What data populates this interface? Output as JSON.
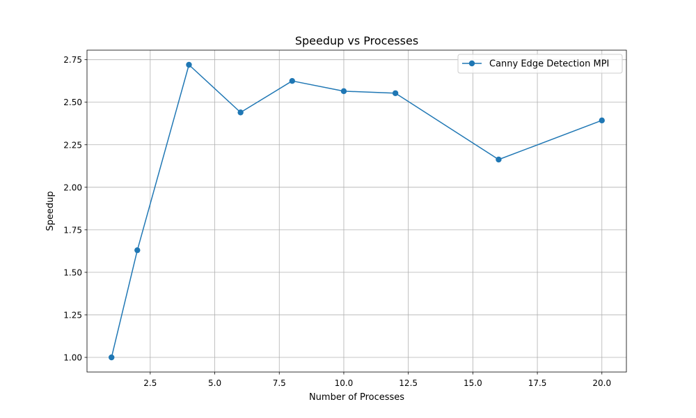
{
  "chart_data": {
    "type": "line",
    "title": "Speedup vs Processes",
    "xlabel": "Number of Processes",
    "ylabel": "Speedup",
    "xlim": [
      0.05,
      20.95
    ],
    "ylim": [
      0.914,
      2.806
    ],
    "xticks": [
      2.5,
      5.0,
      7.5,
      10.0,
      12.5,
      15.0,
      17.5,
      20.0
    ],
    "xtick_labels": [
      "2.5",
      "5.0",
      "7.5",
      "10.0",
      "12.5",
      "15.0",
      "17.5",
      "20.0"
    ],
    "yticks": [
      1.0,
      1.25,
      1.5,
      1.75,
      2.0,
      2.25,
      2.5,
      2.75
    ],
    "ytick_labels": [
      "1.00",
      "1.25",
      "1.50",
      "1.75",
      "2.00",
      "2.25",
      "2.50",
      "2.75"
    ],
    "grid": true,
    "legend_position": "top-right",
    "series": [
      {
        "name": "Canny Edge Detection MPI",
        "color": "#1f77b4",
        "marker": "circle",
        "x": [
          1,
          2,
          4,
          6,
          8,
          10,
          12,
          16,
          20
        ],
        "y": [
          1.0,
          1.63,
          2.72,
          2.44,
          2.625,
          2.565,
          2.553,
          2.163,
          2.393
        ]
      }
    ]
  }
}
